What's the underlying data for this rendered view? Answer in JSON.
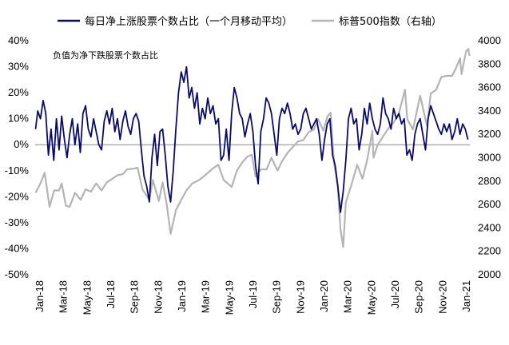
{
  "chart_data": {
    "type": "line",
    "title": "",
    "note": "负值为净下跌股票个数占比",
    "legend_position": "top",
    "grid": false,
    "x_tick_labels": [
      "Jan-18",
      "Mar-18",
      "May-18",
      "Jul-18",
      "Sep-18",
      "Nov-18",
      "Jan-19",
      "Mar-19",
      "May-19",
      "Jul-19",
      "Sep-19",
      "Nov-19",
      "Jan-20",
      "Mar-20",
      "May-20",
      "Jul-20",
      "Sep-20",
      "Nov-20",
      "Jan-21"
    ],
    "xlim": [
      "2018-01-01",
      "2021-02-20"
    ],
    "y_left": {
      "ylim": [
        -50,
        40
      ],
      "ticks": [
        -50,
        -40,
        -30,
        -20,
        -10,
        0,
        10,
        20,
        30,
        40
      ],
      "tick_labels": [
        "-50%",
        "-40%",
        "-30%",
        "-20%",
        "-10%",
        "0%",
        "10%",
        "20%",
        "30%",
        "40%"
      ]
    },
    "y_right": {
      "ylim": [
        2000,
        4000
      ],
      "ticks": [
        2000,
        2200,
        2400,
        2600,
        2800,
        3000,
        3200,
        3400,
        3600,
        3800,
        4000
      ],
      "tick_labels": [
        "2000",
        "2200",
        "2400",
        "2600",
        "2800",
        "3000",
        "3200",
        "3400",
        "3600",
        "3800",
        "4000"
      ]
    },
    "series": [
      {
        "name": "每日净上涨股票个数占比（一个月移动平均）",
        "axis": "left",
        "color": "#0a0a6e",
        "points": [
          [
            "2018-01-02",
            6
          ],
          [
            "2018-01-08",
            13
          ],
          [
            "2018-01-15",
            10
          ],
          [
            "2018-01-22",
            17
          ],
          [
            "2018-01-29",
            12
          ],
          [
            "2018-02-05",
            -4
          ],
          [
            "2018-02-12",
            6
          ],
          [
            "2018-02-19",
            -6
          ],
          [
            "2018-02-26",
            10
          ],
          [
            "2018-03-05",
            -2
          ],
          [
            "2018-03-12",
            11
          ],
          [
            "2018-03-19",
            2
          ],
          [
            "2018-03-26",
            -5
          ],
          [
            "2018-04-02",
            4
          ],
          [
            "2018-04-09",
            10
          ],
          [
            "2018-04-16",
            0
          ],
          [
            "2018-04-23",
            8
          ],
          [
            "2018-04-30",
            -3
          ],
          [
            "2018-05-07",
            12
          ],
          [
            "2018-05-14",
            15
          ],
          [
            "2018-05-21",
            6
          ],
          [
            "2018-05-28",
            3
          ],
          [
            "2018-06-04",
            10
          ],
          [
            "2018-06-11",
            5
          ],
          [
            "2018-06-18",
            0
          ],
          [
            "2018-06-25",
            -2
          ],
          [
            "2018-07-02",
            9
          ],
          [
            "2018-07-09",
            13
          ],
          [
            "2018-07-16",
            8
          ],
          [
            "2018-07-23",
            14
          ],
          [
            "2018-07-30",
            5
          ],
          [
            "2018-08-06",
            10
          ],
          [
            "2018-08-13",
            2
          ],
          [
            "2018-08-20",
            9
          ],
          [
            "2018-08-27",
            13
          ],
          [
            "2018-09-03",
            7
          ],
          [
            "2018-09-10",
            4
          ],
          [
            "2018-09-17",
            10
          ],
          [
            "2018-09-24",
            12
          ],
          [
            "2018-10-01",
            9
          ],
          [
            "2018-10-08",
            -2
          ],
          [
            "2018-10-15",
            -12
          ],
          [
            "2018-10-22",
            -16
          ],
          [
            "2018-10-29",
            -22
          ],
          [
            "2018-11-05",
            -5
          ],
          [
            "2018-11-12",
            4
          ],
          [
            "2018-11-19",
            -8
          ],
          [
            "2018-11-26",
            5
          ],
          [
            "2018-12-03",
            6
          ],
          [
            "2018-12-10",
            -4
          ],
          [
            "2018-12-17",
            -16
          ],
          [
            "2018-12-24",
            -22
          ],
          [
            "2018-12-31",
            -10
          ],
          [
            "2019-01-07",
            6
          ],
          [
            "2019-01-14",
            20
          ],
          [
            "2019-01-21",
            28
          ],
          [
            "2019-01-28",
            24
          ],
          [
            "2019-02-04",
            30
          ],
          [
            "2019-02-11",
            18
          ],
          [
            "2019-02-18",
            22
          ],
          [
            "2019-02-25",
            14
          ],
          [
            "2019-03-04",
            20
          ],
          [
            "2019-03-11",
            8
          ],
          [
            "2019-03-18",
            14
          ],
          [
            "2019-03-25",
            10
          ],
          [
            "2019-04-01",
            18
          ],
          [
            "2019-04-08",
            12
          ],
          [
            "2019-04-15",
            15
          ],
          [
            "2019-04-22",
            8
          ],
          [
            "2019-04-29",
            10
          ],
          [
            "2019-05-06",
            -6
          ],
          [
            "2019-05-13",
            -4
          ],
          [
            "2019-05-20",
            6
          ],
          [
            "2019-05-27",
            -6
          ],
          [
            "2019-06-03",
            12
          ],
          [
            "2019-06-10",
            22
          ],
          [
            "2019-06-17",
            18
          ],
          [
            "2019-06-24",
            12
          ],
          [
            "2019-07-01",
            10
          ],
          [
            "2019-07-08",
            3
          ],
          [
            "2019-07-15",
            8
          ],
          [
            "2019-07-22",
            12
          ],
          [
            "2019-07-29",
            5
          ],
          [
            "2019-08-05",
            -8
          ],
          [
            "2019-08-12",
            -15
          ],
          [
            "2019-08-19",
            5
          ],
          [
            "2019-08-26",
            10
          ],
          [
            "2019-09-02",
            18
          ],
          [
            "2019-09-09",
            16
          ],
          [
            "2019-09-16",
            12
          ],
          [
            "2019-09-23",
            4
          ],
          [
            "2019-09-30",
            -4
          ],
          [
            "2019-10-07",
            10
          ],
          [
            "2019-10-14",
            14
          ],
          [
            "2019-10-21",
            12
          ],
          [
            "2019-10-28",
            16
          ],
          [
            "2019-11-04",
            12
          ],
          [
            "2019-11-11",
            6
          ],
          [
            "2019-11-18",
            8
          ],
          [
            "2019-11-25",
            4
          ],
          [
            "2019-12-02",
            6
          ],
          [
            "2019-12-09",
            12
          ],
          [
            "2019-12-16",
            14
          ],
          [
            "2019-12-23",
            10
          ],
          [
            "2019-12-30",
            6
          ],
          [
            "2020-01-06",
            8
          ],
          [
            "2020-01-13",
            10
          ],
          [
            "2020-01-20",
            4
          ],
          [
            "2020-01-27",
            -6
          ],
          [
            "2020-02-03",
            2
          ],
          [
            "2020-02-10",
            8
          ],
          [
            "2020-02-17",
            10
          ],
          [
            "2020-02-24",
            -4
          ],
          [
            "2020-03-02",
            -8
          ],
          [
            "2020-03-09",
            -16
          ],
          [
            "2020-03-16",
            -26
          ],
          [
            "2020-03-23",
            -18
          ],
          [
            "2020-03-30",
            -6
          ],
          [
            "2020-04-06",
            10
          ],
          [
            "2020-04-13",
            14
          ],
          [
            "2020-04-20",
            8
          ],
          [
            "2020-04-27",
            10
          ],
          [
            "2020-05-04",
            -2
          ],
          [
            "2020-05-11",
            4
          ],
          [
            "2020-05-18",
            14
          ],
          [
            "2020-05-25",
            8
          ],
          [
            "2020-06-01",
            16
          ],
          [
            "2020-06-08",
            10
          ],
          [
            "2020-06-15",
            6
          ],
          [
            "2020-06-22",
            4
          ],
          [
            "2020-06-29",
            8
          ],
          [
            "2020-07-06",
            18
          ],
          [
            "2020-07-13",
            12
          ],
          [
            "2020-07-20",
            10
          ],
          [
            "2020-07-27",
            6
          ],
          [
            "2020-08-03",
            14
          ],
          [
            "2020-08-10",
            10
          ],
          [
            "2020-08-17",
            12
          ],
          [
            "2020-08-24",
            8
          ],
          [
            "2020-08-31",
            10
          ],
          [
            "2020-09-07",
            -4
          ],
          [
            "2020-09-14",
            -2
          ],
          [
            "2020-09-21",
            -6
          ],
          [
            "2020-09-28",
            4
          ],
          [
            "2020-10-05",
            8
          ],
          [
            "2020-10-12",
            10
          ],
          [
            "2020-10-19",
            4
          ],
          [
            "2020-10-26",
            -2
          ],
          [
            "2020-11-02",
            10
          ],
          [
            "2020-11-09",
            15
          ],
          [
            "2020-11-16",
            12
          ],
          [
            "2020-11-23",
            9
          ],
          [
            "2020-11-30",
            6
          ],
          [
            "2020-12-07",
            4
          ],
          [
            "2020-12-14",
            8
          ],
          [
            "2020-12-21",
            5
          ],
          [
            "2020-12-28",
            8
          ],
          [
            "2021-01-04",
            2
          ],
          [
            "2021-01-11",
            5
          ],
          [
            "2021-01-18",
            10
          ],
          [
            "2021-01-25",
            4
          ],
          [
            "2021-02-01",
            8
          ],
          [
            "2021-02-08",
            6
          ],
          [
            "2021-02-15",
            2
          ]
        ]
      },
      {
        "name": "标普500指数（右轴）",
        "axis": "right",
        "color": "#b4b4b4",
        "points": [
          [
            "2018-01-02",
            2700
          ],
          [
            "2018-01-15",
            2780
          ],
          [
            "2018-01-26",
            2872
          ],
          [
            "2018-02-08",
            2580
          ],
          [
            "2018-02-20",
            2720
          ],
          [
            "2018-03-05",
            2720
          ],
          [
            "2018-03-12",
            2780
          ],
          [
            "2018-03-23",
            2590
          ],
          [
            "2018-04-02",
            2580
          ],
          [
            "2018-04-16",
            2700
          ],
          [
            "2018-05-01",
            2640
          ],
          [
            "2018-05-14",
            2730
          ],
          [
            "2018-05-28",
            2710
          ],
          [
            "2018-06-11",
            2780
          ],
          [
            "2018-06-25",
            2720
          ],
          [
            "2018-07-09",
            2790
          ],
          [
            "2018-07-23",
            2820
          ],
          [
            "2018-08-06",
            2850
          ],
          [
            "2018-08-20",
            2860
          ],
          [
            "2018-08-31",
            2900
          ],
          [
            "2018-09-14",
            2905
          ],
          [
            "2018-09-28",
            2914
          ],
          [
            "2018-10-11",
            2730
          ],
          [
            "2018-10-29",
            2640
          ],
          [
            "2018-11-07",
            2810
          ],
          [
            "2018-11-23",
            2630
          ],
          [
            "2018-12-03",
            2790
          ],
          [
            "2018-12-14",
            2600
          ],
          [
            "2018-12-24",
            2350
          ],
          [
            "2019-01-07",
            2550
          ],
          [
            "2019-01-21",
            2640
          ],
          [
            "2019-02-04",
            2720
          ],
          [
            "2019-02-19",
            2780
          ],
          [
            "2019-03-04",
            2800
          ],
          [
            "2019-03-18",
            2830
          ],
          [
            "2019-04-01",
            2870
          ],
          [
            "2019-04-15",
            2910
          ],
          [
            "2019-04-29",
            2940
          ],
          [
            "2019-05-13",
            2810
          ],
          [
            "2019-06-03",
            2750
          ],
          [
            "2019-06-17",
            2890
          ],
          [
            "2019-07-01",
            2960
          ],
          [
            "2019-07-15",
            3010
          ],
          [
            "2019-07-26",
            3025
          ],
          [
            "2019-08-05",
            2840
          ],
          [
            "2019-08-19",
            2900
          ],
          [
            "2019-09-03",
            2900
          ],
          [
            "2019-09-16",
            3000
          ],
          [
            "2019-10-02",
            2890
          ],
          [
            "2019-10-14",
            2970
          ],
          [
            "2019-10-28",
            3040
          ],
          [
            "2019-11-11",
            3090
          ],
          [
            "2019-11-25",
            3140
          ],
          [
            "2019-12-09",
            3150
          ],
          [
            "2019-12-23",
            3220
          ],
          [
            "2020-01-06",
            3240
          ],
          [
            "2020-01-17",
            3330
          ],
          [
            "2020-01-31",
            3230
          ],
          [
            "2020-02-10",
            3350
          ],
          [
            "2020-02-19",
            3386
          ],
          [
            "2020-02-28",
            2950
          ],
          [
            "2020-03-09",
            2750
          ],
          [
            "2020-03-16",
            2390
          ],
          [
            "2020-03-23",
            2237
          ],
          [
            "2020-03-30",
            2620
          ],
          [
            "2020-04-13",
            2760
          ],
          [
            "2020-04-29",
            2940
          ],
          [
            "2020-05-13",
            2820
          ],
          [
            "2020-05-26",
            2990
          ],
          [
            "2020-06-08",
            3230
          ],
          [
            "2020-06-11",
            3000
          ],
          [
            "2020-06-22",
            3110
          ],
          [
            "2020-07-06",
            3180
          ],
          [
            "2020-07-20",
            3250
          ],
          [
            "2020-08-03",
            3300
          ],
          [
            "2020-08-17",
            3380
          ],
          [
            "2020-09-02",
            3580
          ],
          [
            "2020-09-08",
            3330
          ],
          [
            "2020-09-23",
            3240
          ],
          [
            "2020-10-12",
            3530
          ],
          [
            "2020-10-30",
            3270
          ],
          [
            "2020-11-09",
            3550
          ],
          [
            "2020-11-23",
            3580
          ],
          [
            "2020-12-07",
            3690
          ],
          [
            "2020-12-21",
            3700
          ],
          [
            "2021-01-04",
            3700
          ],
          [
            "2021-01-15",
            3770
          ],
          [
            "2021-01-25",
            3850
          ],
          [
            "2021-01-29",
            3715
          ],
          [
            "2021-02-10",
            3910
          ],
          [
            "2021-02-16",
            3930
          ],
          [
            "2021-02-19",
            3870
          ]
        ]
      }
    ]
  }
}
